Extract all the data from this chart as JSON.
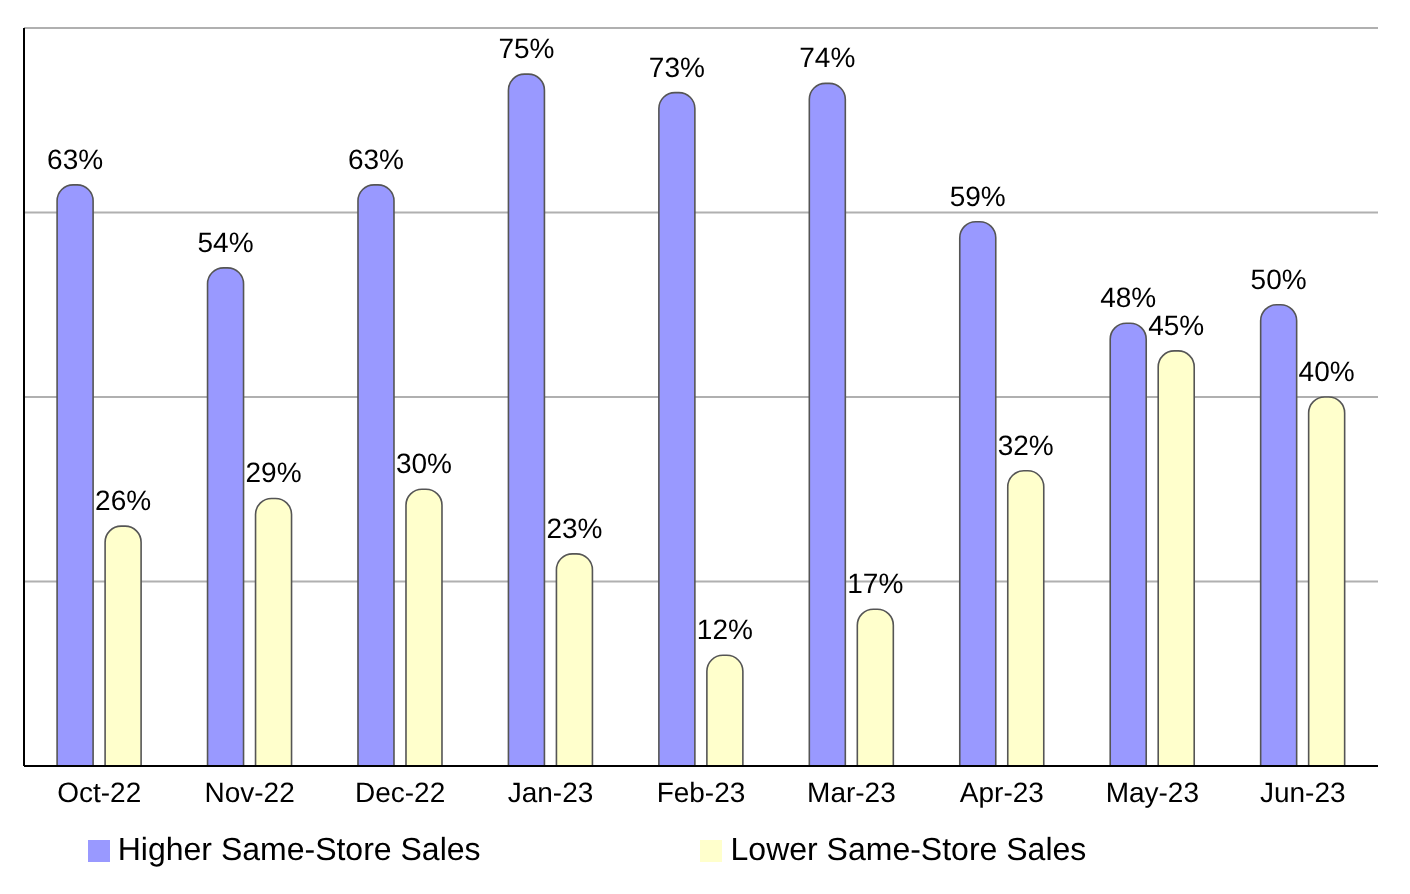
{
  "chart_data": {
    "type": "bar",
    "categories": [
      "Oct-22",
      "Nov-22",
      "Dec-22",
      "Jan-23",
      "Feb-23",
      "Mar-23",
      "Apr-23",
      "May-23",
      "Jun-23"
    ],
    "series": [
      {
        "name": "Higher Same-Store Sales",
        "color": "#9999ff",
        "values": [
          63,
          54,
          63,
          75,
          73,
          74,
          59,
          48,
          50
        ],
        "value_labels": [
          "63%",
          "54%",
          "63%",
          "75%",
          "73%",
          "74%",
          "59%",
          "48%",
          "50%"
        ]
      },
      {
        "name": "Lower Same-Store Sales",
        "color": "#ffffcc",
        "values": [
          26,
          29,
          30,
          23,
          12,
          17,
          32,
          45,
          40
        ],
        "value_labels": [
          "26%",
          "29%",
          "30%",
          "23%",
          "12%",
          "17%",
          "32%",
          "45%",
          "40%"
        ]
      }
    ],
    "ylim": [
      0,
      80
    ],
    "yticks": [
      {
        "value": 0,
        "label": null
      },
      {
        "value": 20,
        "label": null
      },
      {
        "value": 40,
        "label": null
      },
      {
        "value": 60,
        "label": null
      },
      {
        "value": 80,
        "label": null
      }
    ],
    "tick_labels": "x",
    "grid": "y",
    "legend": "bottom"
  }
}
